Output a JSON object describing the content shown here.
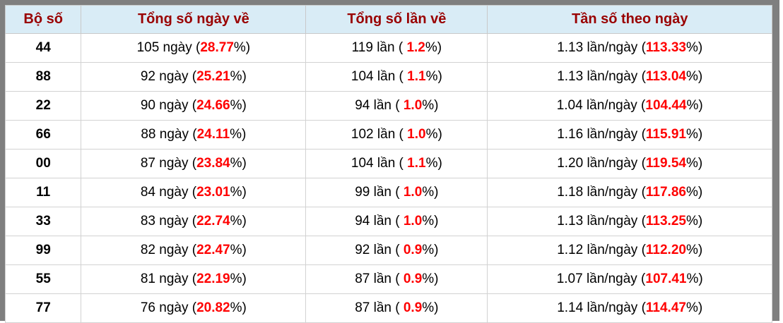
{
  "colors": {
    "frame_gray": "#7f7f7f",
    "header_bg": "#d9ecf6",
    "header_text": "#990000",
    "highlight_red": "#ff0000",
    "cell_border": "#d2d2d2",
    "body_text": "#000000"
  },
  "table": {
    "columns": [
      {
        "label": "Bộ số"
      },
      {
        "label": "Tổng số ngày về"
      },
      {
        "label": "Tổng số lần về"
      },
      {
        "label": "Tần số theo ngày"
      }
    ],
    "rows": [
      {
        "pair": "44",
        "days_pre": "105 ngày (",
        "days_val": "28.77",
        "days_post": "%)",
        "times_pre": "119 lần ( ",
        "times_val": "1.2",
        "times_post": "%)",
        "freq_pre": "1.13 lần/ngày (",
        "freq_val": "113.33",
        "freq_post": "%)"
      },
      {
        "pair": "88",
        "days_pre": "92 ngày (",
        "days_val": "25.21",
        "days_post": "%)",
        "times_pre": "104 lần ( ",
        "times_val": "1.1",
        "times_post": "%)",
        "freq_pre": "1.13 lần/ngày (",
        "freq_val": "113.04",
        "freq_post": "%)"
      },
      {
        "pair": "22",
        "days_pre": "90 ngày (",
        "days_val": "24.66",
        "days_post": "%)",
        "times_pre": "94 lần ( ",
        "times_val": "1.0",
        "times_post": "%)",
        "freq_pre": "1.04 lần/ngày (",
        "freq_val": "104.44",
        "freq_post": "%)"
      },
      {
        "pair": "66",
        "days_pre": "88 ngày (",
        "days_val": "24.11",
        "days_post": "%)",
        "times_pre": "102 lần ( ",
        "times_val": "1.0",
        "times_post": "%)",
        "freq_pre": "1.16 lần/ngày (",
        "freq_val": "115.91",
        "freq_post": "%)"
      },
      {
        "pair": "00",
        "days_pre": "87 ngày (",
        "days_val": "23.84",
        "days_post": "%)",
        "times_pre": "104 lần ( ",
        "times_val": "1.1",
        "times_post": "%)",
        "freq_pre": "1.20 lần/ngày (",
        "freq_val": "119.54",
        "freq_post": "%)"
      },
      {
        "pair": "11",
        "days_pre": "84 ngày (",
        "days_val": "23.01",
        "days_post": "%)",
        "times_pre": "99 lần ( ",
        "times_val": "1.0",
        "times_post": "%)",
        "freq_pre": "1.18 lần/ngày (",
        "freq_val": "117.86",
        "freq_post": "%)"
      },
      {
        "pair": "33",
        "days_pre": "83 ngày (",
        "days_val": "22.74",
        "days_post": "%)",
        "times_pre": "94 lần ( ",
        "times_val": "1.0",
        "times_post": "%)",
        "freq_pre": "1.13 lần/ngày (",
        "freq_val": "113.25",
        "freq_post": "%)"
      },
      {
        "pair": "99",
        "days_pre": "82 ngày (",
        "days_val": "22.47",
        "days_post": "%)",
        "times_pre": "92 lần ( ",
        "times_val": "0.9",
        "times_post": "%)",
        "freq_pre": "1.12 lần/ngày (",
        "freq_val": "112.20",
        "freq_post": "%)"
      },
      {
        "pair": "55",
        "days_pre": "81 ngày (",
        "days_val": "22.19",
        "days_post": "%)",
        "times_pre": "87 lần ( ",
        "times_val": "0.9",
        "times_post": "%)",
        "freq_pre": "1.07 lần/ngày (",
        "freq_val": "107.41",
        "freq_post": "%)"
      },
      {
        "pair": "77",
        "days_pre": "76 ngày (",
        "days_val": "20.82",
        "days_post": "%)",
        "times_pre": "87 lần ( ",
        "times_val": "0.9",
        "times_post": "%)",
        "freq_pre": "1.14 lần/ngày (",
        "freq_val": "114.47",
        "freq_post": "%)"
      }
    ]
  }
}
